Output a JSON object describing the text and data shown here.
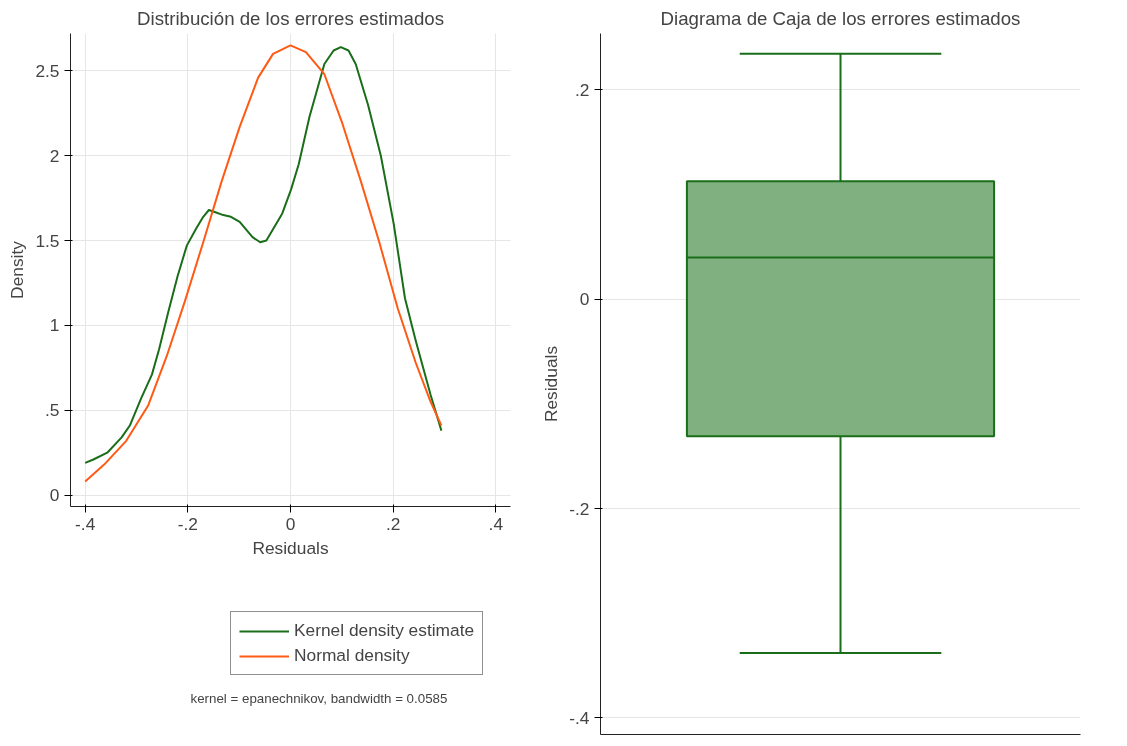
{
  "chart_data": [
    {
      "type": "line",
      "title": "Distribución de los errores estimados",
      "xlabel": "Residuals",
      "ylabel": "Density",
      "xlim": [
        -0.4286,
        0.4286
      ],
      "ylim": [
        -0.067,
        2.72
      ],
      "xticks": [
        {
          "value": -0.4,
          "label": "-.4"
        },
        {
          "value": -0.2,
          "label": "-.2"
        },
        0,
        {
          "value": 0.2,
          "label": ".2"
        },
        {
          "value": 0.4,
          "label": ".4"
        }
      ],
      "yticks": [
        0,
        {
          "value": 0.5,
          "label": ".5"
        },
        1,
        1.5,
        2,
        2.5
      ],
      "grid": true,
      "legend": "bottom",
      "line_style": "solid",
      "marker": "none",
      "annotations": [
        "kernel = epanechnikov, bandwidth = 0.0585"
      ],
      "series": [
        {
          "name": "Kernel density estimate",
          "color": "#1a6e1a",
          "x": [
            -0.4,
            -0.384,
            -0.357,
            -0.329,
            -0.313,
            -0.291,
            -0.27,
            -0.256,
            -0.238,
            -0.22,
            -0.202,
            -0.184,
            -0.17,
            -0.159,
            -0.149,
            -0.131,
            -0.116,
            -0.099,
            -0.074,
            -0.059,
            -0.047,
            -0.016,
            0.001,
            0.016,
            0.037,
            0.066,
            0.084,
            0.098,
            0.113,
            0.127,
            0.151,
            0.176,
            0.201,
            0.223,
            0.244,
            0.273,
            0.294
          ],
          "values": [
            0.19,
            0.21,
            0.25,
            0.34,
            0.41,
            0.57,
            0.71,
            0.86,
            1.08,
            1.29,
            1.47,
            1.57,
            1.64,
            1.68,
            1.67,
            1.65,
            1.64,
            1.61,
            1.52,
            1.49,
            1.5,
            1.66,
            1.8,
            1.95,
            2.23,
            2.54,
            2.62,
            2.64,
            2.62,
            2.54,
            2.3,
            2.0,
            1.6,
            1.16,
            0.91,
            0.59,
            0.38
          ]
        },
        {
          "name": "Normal density",
          "color": "#ff5a14",
          "x": [
            -0.4,
            -0.363,
            -0.32,
            -0.277,
            -0.241,
            -0.206,
            -0.17,
            -0.134,
            -0.099,
            -0.063,
            -0.034,
            0,
            0.03,
            0.066,
            0.101,
            0.137,
            0.173,
            0.209,
            0.244,
            0.273,
            0.294
          ],
          "values": [
            0.08,
            0.18,
            0.32,
            0.53,
            0.82,
            1.14,
            1.49,
            1.85,
            2.17,
            2.46,
            2.6,
            2.65,
            2.61,
            2.48,
            2.19,
            1.85,
            1.49,
            1.1,
            0.78,
            0.55,
            0.41
          ]
        }
      ]
    },
    {
      "type": "box",
      "title": "Diagrama de Caja de los errores estimados",
      "ylabel": "Residuals",
      "categories": [
        null
      ],
      "ylim": [
        -0.416,
        0.254
      ],
      "yticks": [
        {
          "value": -0.4,
          "label": "-.4"
        },
        {
          "value": -0.2,
          "label": "-.2"
        },
        0,
        {
          "value": 0.2,
          "label": ".2"
        }
      ],
      "grid": "y",
      "tick_labels": "y",
      "series": [
        {
          "color": "#80b080",
          "boxes": [
            {
              "low": -0.338,
              "q1": -0.131,
              "median": 0.04,
              "q3": 0.1127,
              "high": 0.2346
            }
          ]
        }
      ]
    }
  ]
}
